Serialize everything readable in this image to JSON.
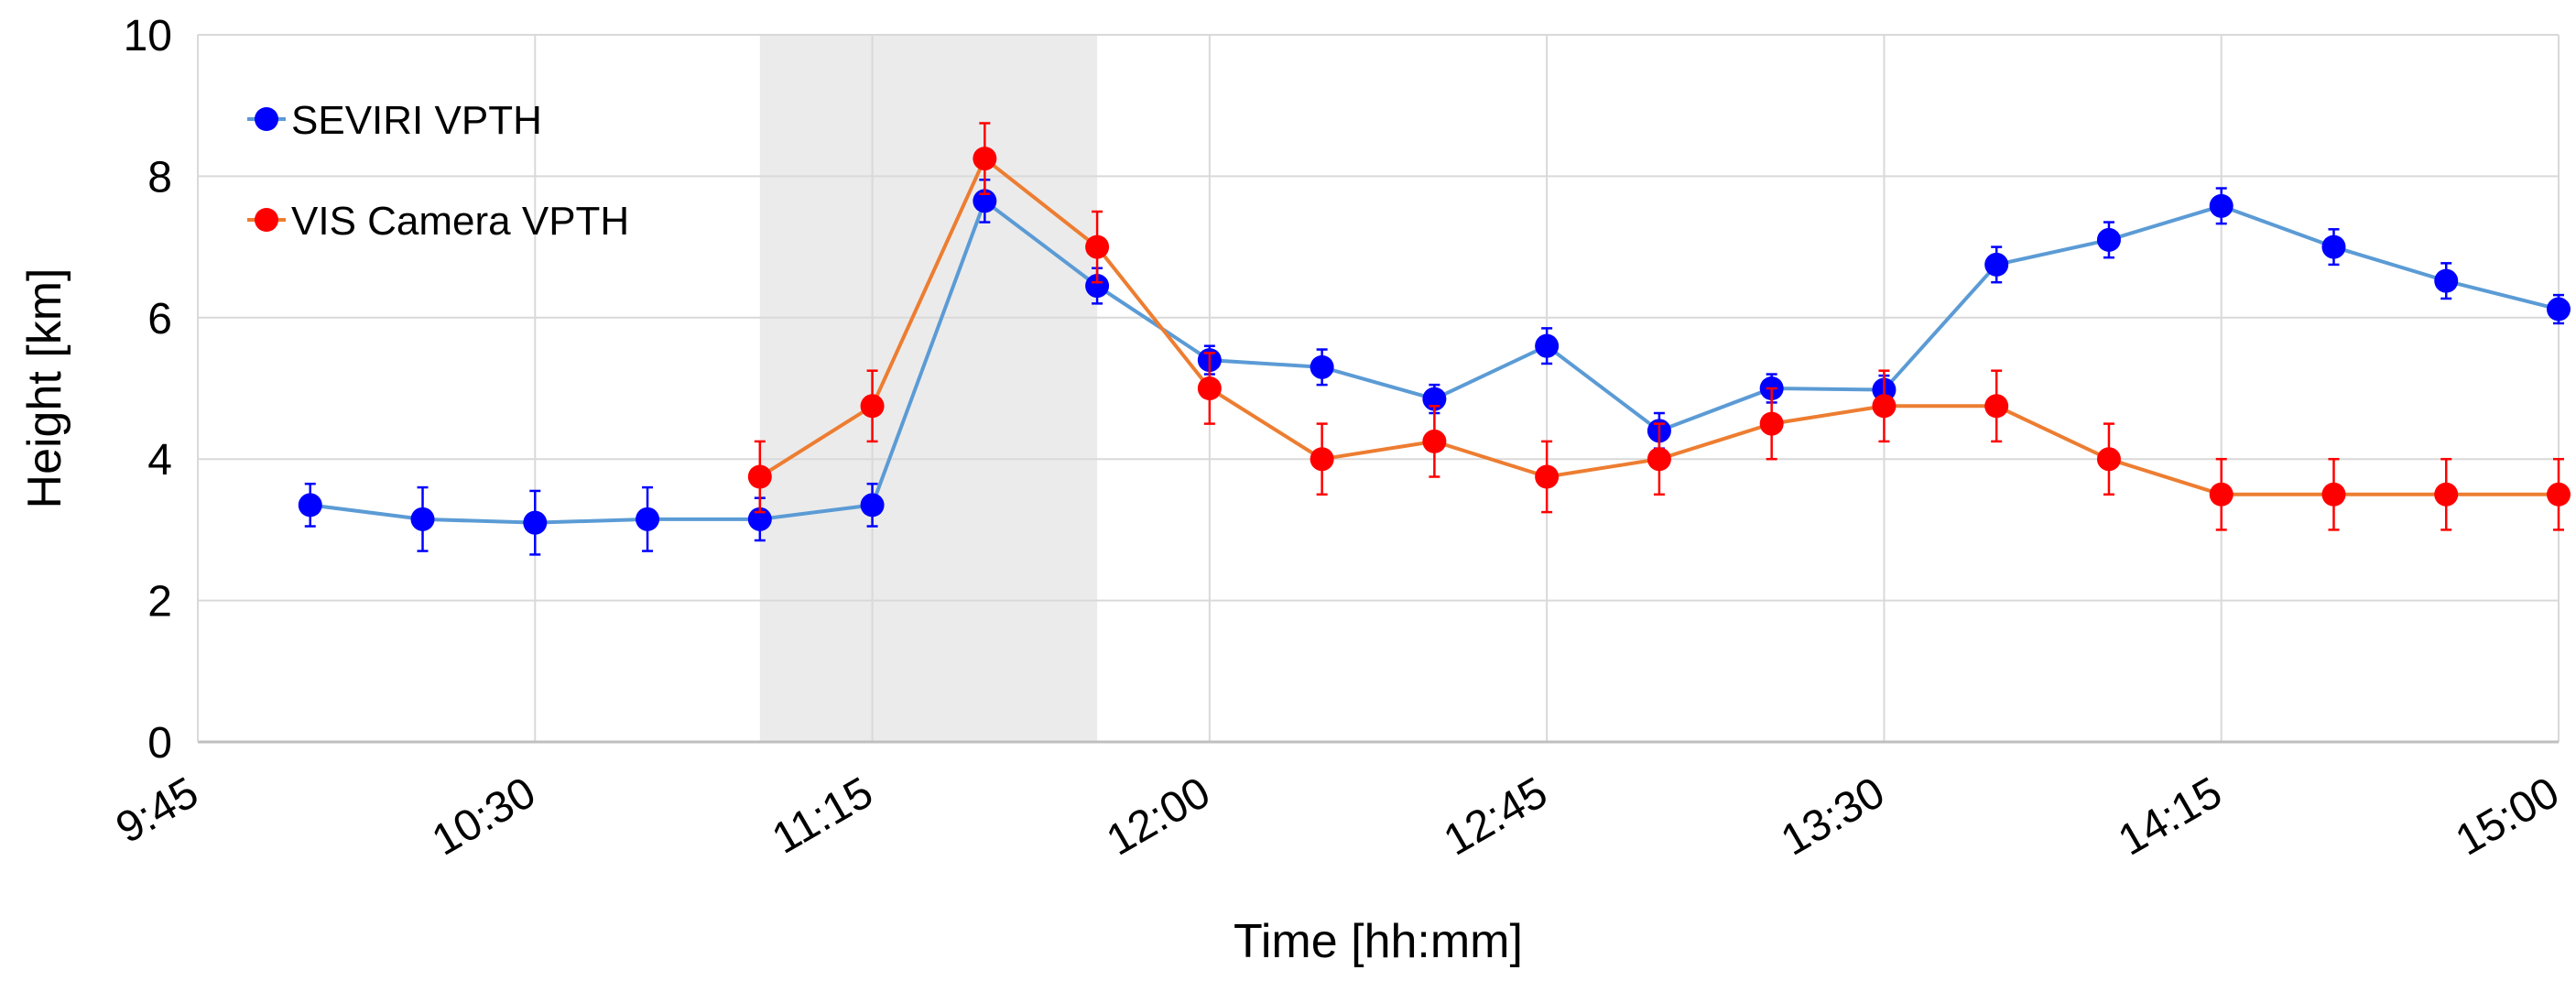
{
  "chart_data": {
    "type": "line",
    "title": "",
    "xlabel": "Time [hh:mm]",
    "ylabel": "Height [km]",
    "xlim": [
      "9:45",
      "15:00"
    ],
    "ylim": [
      0,
      10
    ],
    "x_ticks": [
      "9:45",
      "10:30",
      "11:15",
      "12:00",
      "12:45",
      "13:30",
      "14:15",
      "15:00"
    ],
    "y_ticks": [
      "0",
      "2",
      "4",
      "6",
      "8",
      "10"
    ],
    "grid": true,
    "legend_position": "top-left",
    "shaded_interval": [
      "11:00",
      "11:45"
    ],
    "series": [
      {
        "name": "SEVIRI VPTH",
        "line_color": "#5b9bd5",
        "marker_color": "#0000ff",
        "x": [
          "10:00",
          "10:15",
          "10:30",
          "10:45",
          "11:00",
          "11:15",
          "11:30",
          "11:45",
          "12:00",
          "12:15",
          "12:30",
          "12:45",
          "13:00",
          "13:15",
          "13:30",
          "13:45",
          "14:00",
          "14:15",
          "14:30",
          "14:45",
          "15:00"
        ],
        "y": [
          3.35,
          3.15,
          3.1,
          3.15,
          3.15,
          3.35,
          7.65,
          6.45,
          5.4,
          5.3,
          4.85,
          5.6,
          4.4,
          5.0,
          4.98,
          6.75,
          7.1,
          7.58,
          7.0,
          6.52,
          6.12
        ],
        "error": [
          0.3,
          0.45,
          0.45,
          0.45,
          0.3,
          0.3,
          0.3,
          0.25,
          0.2,
          0.25,
          0.2,
          0.25,
          0.25,
          0.2,
          0.2,
          0.25,
          0.25,
          0.25,
          0.25,
          0.25,
          0.2
        ]
      },
      {
        "name": "VIS Camera VPTH",
        "line_color": "#ed7d31",
        "marker_color": "#ff0000",
        "x": [
          "11:00",
          "11:15",
          "11:30",
          "11:45",
          "12:00",
          "12:15",
          "12:30",
          "12:45",
          "13:00",
          "13:15",
          "13:30",
          "13:45",
          "14:00",
          "14:15",
          "14:30",
          "14:45",
          "15:00"
        ],
        "y": [
          3.75,
          4.75,
          8.25,
          7.0,
          5.0,
          4.0,
          4.25,
          3.75,
          4.0,
          4.5,
          4.75,
          4.75,
          4.0,
          3.5,
          3.5,
          3.5,
          3.5
        ],
        "error": [
          0.5,
          0.5,
          0.5,
          0.5,
          0.5,
          0.5,
          0.5,
          0.5,
          0.5,
          0.5,
          0.5,
          0.5,
          0.5,
          0.5,
          0.5,
          0.5,
          0.5
        ]
      }
    ]
  }
}
